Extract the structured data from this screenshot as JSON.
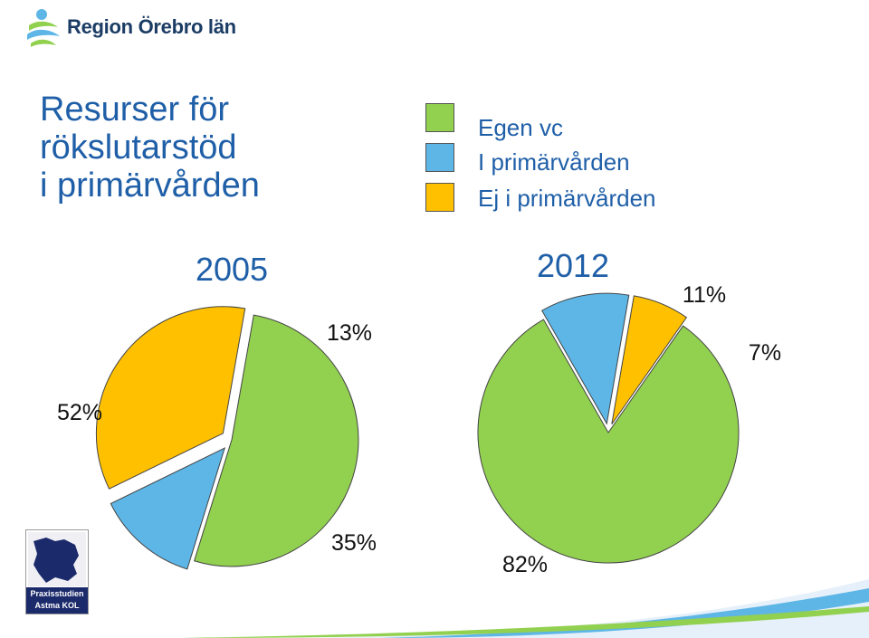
{
  "header": {
    "logo_text": "Region Örebro län"
  },
  "title": {
    "line1": "Resurser för",
    "line2": "rökslutarstöd",
    "line3": "i primärvården"
  },
  "colors": {
    "title": "#1f5fa8",
    "green": "#92d050",
    "blue": "#5db6e6",
    "yellow": "#ffc000"
  },
  "badge": {
    "line1": "Praxisstudien",
    "line2": "Astma KOL"
  },
  "chart_data": [
    {
      "type": "pie",
      "title": "2005",
      "legend": "top",
      "slices": [
        {
          "label": "Egen vc",
          "value": 52,
          "display": "52%",
          "color": "#92d050"
        },
        {
          "label": "I primärvården",
          "value": 13,
          "display": "13%",
          "color": "#5db6e6"
        },
        {
          "label": "Ej i primärvården",
          "value": 35,
          "display": "35%",
          "color": "#ffc000"
        }
      ]
    },
    {
      "type": "pie",
      "title": "2012",
      "legend": "top",
      "slices": [
        {
          "label": "Egen vc",
          "value": 82,
          "display": "82%",
          "color": "#92d050"
        },
        {
          "label": "I primärvården",
          "value": 11,
          "display": "11%",
          "color": "#5db6e6"
        },
        {
          "label": "Ej i primärvården",
          "value": 7,
          "display": "7%",
          "color": "#ffc000"
        }
      ]
    }
  ]
}
